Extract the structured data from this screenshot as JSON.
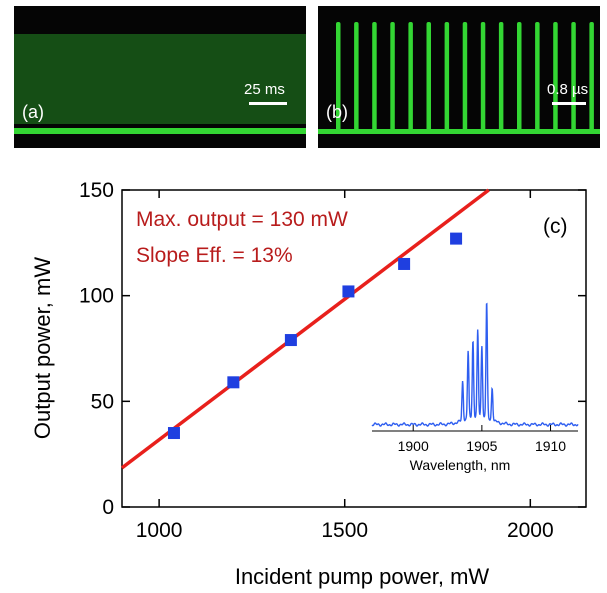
{
  "panels": {
    "a": {
      "label": "(a)",
      "scale_label": "25 ms"
    },
    "b": {
      "label": "(b)",
      "scale_label": "0.8 µs",
      "pulse_count": 15
    }
  },
  "colors": {
    "osc_background": "#050505",
    "osc_trace": "#33d633",
    "fit_line": "#e8201c",
    "markers": "#1f3fe0",
    "annotation": "#b81c1c",
    "inset_trace": "#2e5ef0"
  },
  "chart_data": {
    "type": "scatter",
    "panel_label": "(c)",
    "xlabel": "Incident pump power, mW",
    "ylabel": "Output power, mW",
    "xlim": [
      900,
      2150
    ],
    "ylim": [
      0,
      150
    ],
    "xticks": [
      1000,
      1500,
      2000
    ],
    "yticks": [
      0,
      50,
      100,
      150
    ],
    "series": [
      {
        "type": "scatter",
        "x": [
          1040,
          1200,
          1355,
          1510,
          1660,
          1800
        ],
        "y": [
          35,
          59,
          79,
          102,
          115,
          127
        ]
      }
    ],
    "fit": {
      "type": "line",
      "x": [
        900,
        1888
      ],
      "y": [
        18.5,
        150
      ]
    },
    "annotations": [
      "Max. output = 130 mW",
      "Slope Eff. = 13%"
    ],
    "inset": {
      "type": "line",
      "xlabel": "Wavelength, nm",
      "xlim": [
        1897,
        1912
      ],
      "xticks": [
        1900,
        1905,
        1910
      ],
      "ylim": [
        0,
        1
      ],
      "peaks": [
        {
          "x": 1903.6,
          "y": 0.34
        },
        {
          "x": 1904.0,
          "y": 0.58
        },
        {
          "x": 1904.35,
          "y": 0.66
        },
        {
          "x": 1904.7,
          "y": 0.74
        },
        {
          "x": 1905.0,
          "y": 0.62
        },
        {
          "x": 1905.35,
          "y": 1.0
        },
        {
          "x": 1905.75,
          "y": 0.28
        }
      ]
    }
  }
}
